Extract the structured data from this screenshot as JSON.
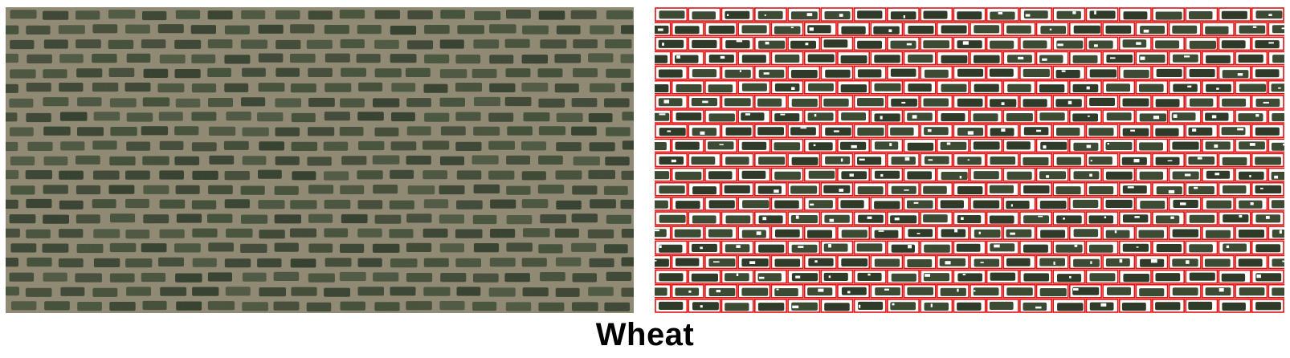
{
  "figure": {
    "caption": "Wheat"
  },
  "panels": [
    {
      "name": "aerial-field-image",
      "description_role": "input"
    },
    {
      "name": "segmented-plots-with-boxes",
      "description_role": "output"
    }
  ],
  "colors": {
    "soil": "#8d8771",
    "soil_light": "#a39d86",
    "plot_green": "#3d4a34",
    "plot_dark": "#2f3a29",
    "box_red": "#e01010",
    "mask_bg": "#ffffff"
  }
}
